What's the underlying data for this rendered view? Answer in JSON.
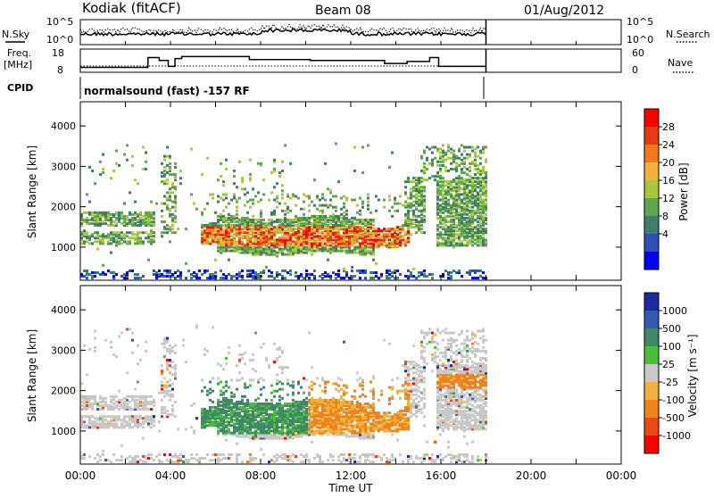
{
  "header": {
    "station": "Kodiak (fitACF)",
    "beam": "Beam 08",
    "date": "01/Aug/2012"
  },
  "chart_data": [
    {
      "type": "line",
      "panel": "nsky",
      "left_label": "N.Sky",
      "right_label": "N.Search",
      "left_ticks": [
        "10^5",
        "10^0"
      ],
      "right_ticks": [
        "10^5",
        "10^0"
      ],
      "x_range_hours": [
        0,
        24
      ],
      "data_end_hours": 18
    },
    {
      "type": "line",
      "panel": "freq",
      "left_label_line1": "Freq.",
      "left_label_line2": "[MHz]",
      "right_label": "Nave",
      "left_ticks": [
        "18",
        "8"
      ],
      "right_ticks": [
        "60",
        "0"
      ],
      "ylim_left": [
        8,
        18
      ],
      "x_range_hours": [
        0,
        24
      ],
      "freq_steps": [
        {
          "start": 0.0,
          "end": 3.0,
          "mhz": 10.5
        },
        {
          "start": 3.0,
          "end": 3.5,
          "mhz": 15.5
        },
        {
          "start": 3.5,
          "end": 3.9,
          "mhz": 14.0
        },
        {
          "start": 3.9,
          "end": 4.2,
          "mhz": 11.0
        },
        {
          "start": 4.2,
          "end": 4.5,
          "mhz": 15.0
        },
        {
          "start": 4.5,
          "end": 7.5,
          "mhz": 16.0
        },
        {
          "start": 7.5,
          "end": 10.2,
          "mhz": 14.5
        },
        {
          "start": 10.2,
          "end": 13.5,
          "mhz": 14.0
        },
        {
          "start": 13.5,
          "end": 14.5,
          "mhz": 12.5
        },
        {
          "start": 14.5,
          "end": 15.5,
          "mhz": 13.5
        },
        {
          "start": 15.5,
          "end": 15.9,
          "mhz": 15.5
        },
        {
          "start": 15.9,
          "end": 18.0,
          "mhz": 11.0
        }
      ]
    },
    {
      "type": "table",
      "panel": "cpid",
      "label": "CPID",
      "value": "normalsound (fast) -157 RF"
    },
    {
      "type": "heatmap",
      "panel": "power",
      "ylabel": "Slant Range [km]",
      "xlabel": "",
      "y_ticks": [
        "4000",
        "3000",
        "2000",
        "1000"
      ],
      "ylim": [
        180,
        4600
      ],
      "x_range_hours": [
        0,
        24
      ],
      "colorbar_label": "Power [dB]",
      "colorbar_ticks": [
        "28",
        "24",
        "20",
        "16",
        "12",
        "8",
        "4"
      ],
      "colorbar_values": [
        4,
        8,
        12,
        16,
        20,
        24,
        28
      ],
      "colors": [
        "#0000ff",
        "#2b4fb5",
        "#3e7f6a",
        "#5ea84c",
        "#a8c83a",
        "#f0b23a",
        "#f07a1a",
        "#e63a12",
        "#ff0000"
      ]
    },
    {
      "type": "heatmap",
      "panel": "velocity",
      "ylabel": "Slant Range [km]",
      "xlabel": "Time UT",
      "y_ticks": [
        "4000",
        "3000",
        "2000",
        "1000"
      ],
      "ylim": [
        180,
        4600
      ],
      "x_ticks": [
        "00:00",
        "04:00",
        "08:00",
        "12:00",
        "16:00",
        "20:00",
        "00:00"
      ],
      "x_range_hours": [
        0,
        24
      ],
      "colorbar_label": "Velocity [m s⁻¹]",
      "colorbar_ticks": [
        "1000",
        "500",
        "100",
        "25",
        "-25",
        "-100",
        "-500",
        "-1000"
      ],
      "colors": [
        "#1a2aa0",
        "#2f5ab0",
        "#3f8a66",
        "#4cbf3a",
        "#c8c8c8",
        "#f0b23a",
        "#f0821a",
        "#e84a12",
        "#ff0000"
      ]
    }
  ]
}
